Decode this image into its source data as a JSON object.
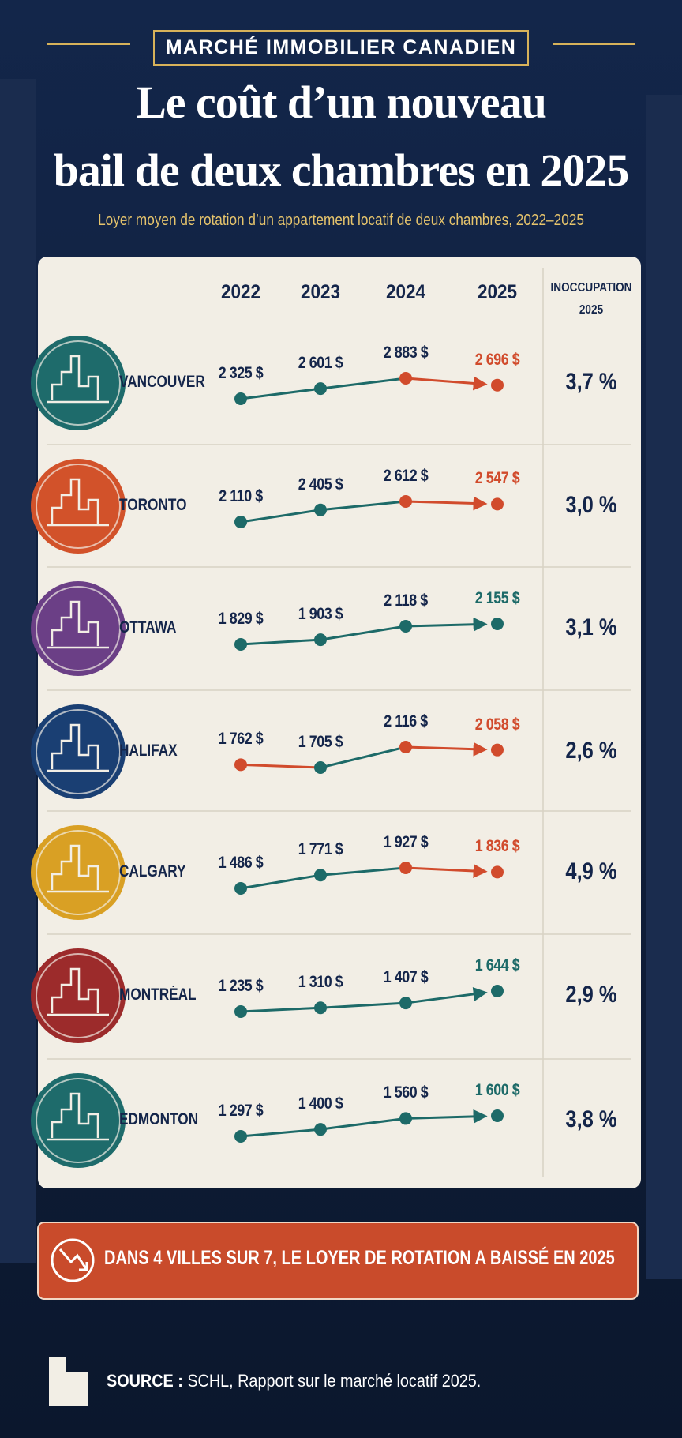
{
  "header": {
    "kicker": "MARCHÉ IMMOBILIER CANADIEN",
    "title": [
      "Le coût d’un nouveau",
      "bail de deux chambres en 2025"
    ],
    "subtitle": "Loyer moyen de rotation d’un appartement locatif de deux chambres, 2022–2025"
  },
  "table": {
    "columns": [
      "2022",
      "2023",
      "2024",
      "2025"
    ],
    "vacancy_header": [
      "INOCCUPATION",
      "2025"
    ],
    "rows": [
      {
        "city": "VANCOUVER",
        "values": [
          2325,
          2601,
          2883,
          2696
        ],
        "value_labels": [
          "2 325 $",
          "2 601 $",
          "2 883 $",
          "2 696 $"
        ],
        "vacancy": "3,7 %"
      },
      {
        "city": "TORONTO",
        "values": [
          2110,
          2405,
          2612,
          2547
        ],
        "value_labels": [
          "2 110 $",
          "2 405 $",
          "2 612 $",
          "2 547 $"
        ],
        "vacancy": "3,0 %"
      },
      {
        "city": "OTTAWA",
        "values": [
          1829,
          1903,
          2118,
          2155
        ],
        "value_labels": [
          "1 829 $",
          "1 903 $",
          "2 118 $",
          "2 155 $"
        ],
        "vacancy": "3,1 %"
      },
      {
        "city": "HALIFAX",
        "values": [
          1762,
          1705,
          2116,
          2058
        ],
        "value_labels": [
          "1 762 $",
          "1 705 $",
          "2 116 $",
          "2 058 $"
        ],
        "vacancy": "2,6 %"
      },
      {
        "city": "CALGARY",
        "values": [
          1486,
          1771,
          1927,
          1836
        ],
        "value_labels": [
          "1 486 $",
          "1 771 $",
          "1 927 $",
          "1 836 $"
        ],
        "vacancy": "4,9 %"
      },
      {
        "city": "MONTRÉAL",
        "values": [
          1235,
          1310,
          1407,
          1644
        ],
        "value_labels": [
          "1 235 $",
          "1 310 $",
          "1 407 $",
          "1 644 $"
        ],
        "vacancy": "2,9 %"
      },
      {
        "city": "EDMONTON",
        "values": [
          1297,
          1400,
          1560,
          1600
        ],
        "value_labels": [
          "1 297 $",
          "1 400 $",
          "1 560 $",
          "1 600 $"
        ],
        "vacancy": "3,8 %"
      }
    ]
  },
  "callout": "DANS 4 VILLES SUR 7, LE LOYER DE ROTATION A BAISSÉ EN 2025",
  "source": {
    "label": "SOURCE :",
    "text": "SCHL, Rapport sur le marché locatif 2025."
  }
}
